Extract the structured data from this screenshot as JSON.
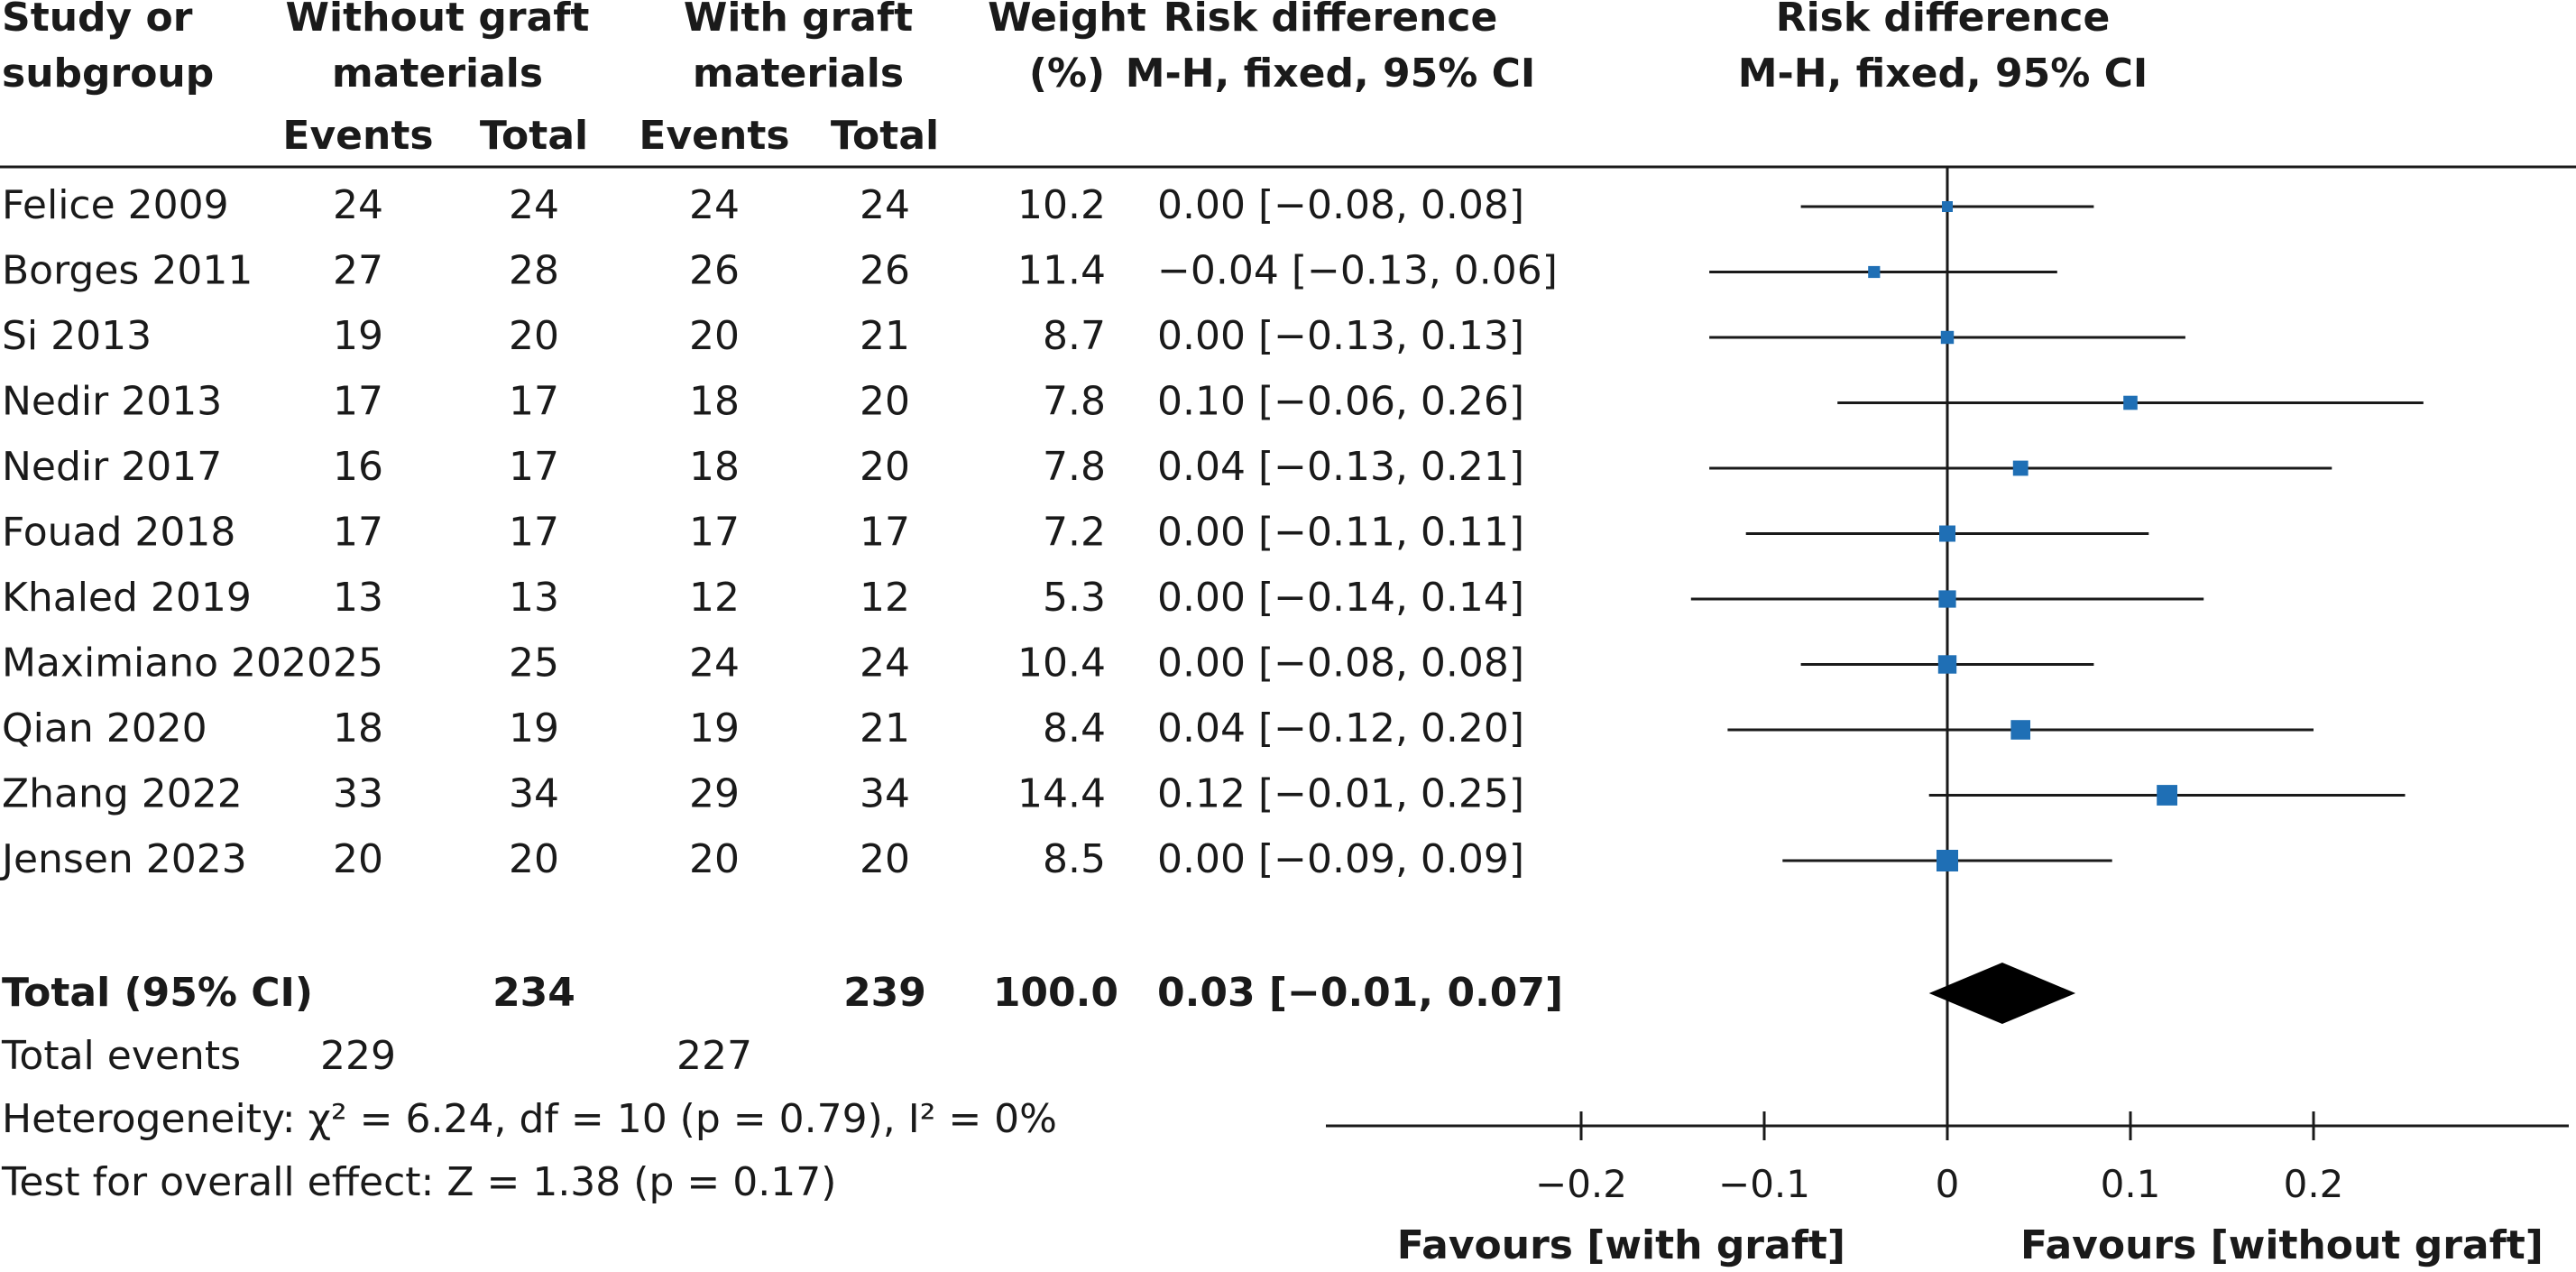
{
  "headers": {
    "study": [
      "Study or",
      "subgroup"
    ],
    "without": [
      "Without graft",
      "materials"
    ],
    "with": [
      "With graft",
      "materials"
    ],
    "weight": [
      "Weight",
      "(%)"
    ],
    "rd_col": [
      "Risk difference",
      "M-H, fixed, 95% CI"
    ],
    "rd_plot": [
      "Risk difference",
      "M-H, fixed, 95% CI"
    ],
    "events": "Events",
    "total": "Total"
  },
  "studies": [
    {
      "name": "Felice 2009",
      "ev_without": "24",
      "tot_without": "24",
      "ev_with": "24",
      "tot_with": "24",
      "weight": "10.2",
      "ci_text": "0.00 [−0.08, 0.08]"
    },
    {
      "name": "Borges 2011",
      "ev_without": "27",
      "tot_without": "28",
      "ev_with": "26",
      "tot_with": "26",
      "weight": "11.4",
      "ci_text": "−0.04 [−0.13, 0.06]"
    },
    {
      "name": "Si 2013",
      "ev_without": "19",
      "tot_without": "20",
      "ev_with": "20",
      "tot_with": "21",
      "weight": "8.7",
      "ci_text": "0.00 [−0.13, 0.13]"
    },
    {
      "name": "Nedir 2013",
      "ev_without": "17",
      "tot_without": "17",
      "ev_with": "18",
      "tot_with": "20",
      "weight": "7.8",
      "ci_text": "0.10 [−0.06, 0.26]"
    },
    {
      "name": "Nedir 2017",
      "ev_without": "16",
      "tot_without": "17",
      "ev_with": "18",
      "tot_with": "20",
      "weight": "7.8",
      "ci_text": "0.04 [−0.13, 0.21]"
    },
    {
      "name": "Fouad 2018",
      "ev_without": "17",
      "tot_without": "17",
      "ev_with": "17",
      "tot_with": "17",
      "weight": "7.2",
      "ci_text": "0.00 [−0.11, 0.11]"
    },
    {
      "name": "Khaled 2019",
      "ev_without": "13",
      "tot_without": "13",
      "ev_with": "12",
      "tot_with": "12",
      "weight": "5.3",
      "ci_text": "0.00 [−0.14, 0.14]"
    },
    {
      "name": "Maximiano 2020",
      "ev_without": "25",
      "tot_without": "25",
      "ev_with": "24",
      "tot_with": "24",
      "weight": "10.4",
      "ci_text": "0.00 [−0.08, 0.08]"
    },
    {
      "name": "Qian 2020",
      "ev_without": "18",
      "tot_without": "19",
      "ev_with": "19",
      "tot_with": "21",
      "weight": "8.4",
      "ci_text": "0.04 [−0.12, 0.20]"
    },
    {
      "name": "Zhang 2022",
      "ev_without": "33",
      "tot_without": "34",
      "ev_with": "29",
      "tot_with": "34",
      "weight": "14.4",
      "ci_text": "0.12 [−0.01, 0.25]"
    },
    {
      "name": "Jensen 2023",
      "ev_without": "20",
      "tot_without": "20",
      "ev_with": "20",
      "tot_with": "20",
      "weight": "8.5",
      "ci_text": "0.00 [−0.09, 0.09]"
    }
  ],
  "total": {
    "label": "Total (95% CI)",
    "tot_without": "234",
    "tot_with": "239",
    "weight": "100.0",
    "ci_text": "0.03 [−0.01, 0.07]"
  },
  "footer": {
    "events_label": "Total events",
    "events_without": "229",
    "events_with": "227",
    "heterogeneity": "Heterogeneity: χ² = 6.24, df = 10 (p = 0.79), I² = 0%",
    "overall": "Test for overall effect: Z = 1.38 (p = 0.17)"
  },
  "axis": {
    "favours_left": "Favours [with graft]",
    "favours_right": "Favours [without graft]"
  },
  "colors": {
    "marker": "#1f6fb5",
    "line": "#1a1a1a",
    "diamond": "#000000"
  },
  "chart_data": {
    "type": "scatter",
    "title": "Risk difference",
    "subtitle": "M-H, fixed, 95% CI",
    "xlabel": "",
    "ylabel": "",
    "xlim": [
      -0.34,
      0.34
    ],
    "xticks": [
      -0.2,
      -0.1,
      0,
      0.1,
      0.2
    ],
    "xtick_labels": [
      "−0.2",
      "−0.1",
      "0",
      "0.1",
      "0.2"
    ],
    "grid": false,
    "series": [
      {
        "name": "",
        "points": [
          {
            "study": "Felice 2009",
            "rd": 0.0,
            "lower": -0.08,
            "upper": 0.08,
            "weight": 10.2
          },
          {
            "study": "Borges 2011",
            "rd": -0.04,
            "lower": -0.13,
            "upper": 0.06,
            "weight": 11.4
          },
          {
            "study": "Si 2013",
            "rd": 0.0,
            "lower": -0.13,
            "upper": 0.13,
            "weight": 8.7
          },
          {
            "study": "Nedir 2013",
            "rd": 0.1,
            "lower": -0.06,
            "upper": 0.26,
            "weight": 7.8
          },
          {
            "study": "Nedir 2017",
            "rd": 0.04,
            "lower": -0.13,
            "upper": 0.21,
            "weight": 7.8
          },
          {
            "study": "Fouad 2018",
            "rd": 0.0,
            "lower": -0.11,
            "upper": 0.11,
            "weight": 7.2
          },
          {
            "study": "Khaled 2019",
            "rd": 0.0,
            "lower": -0.14,
            "upper": 0.14,
            "weight": 5.3
          },
          {
            "study": "Maximiano 2020",
            "rd": 0.0,
            "lower": -0.08,
            "upper": 0.08,
            "weight": 10.4
          },
          {
            "study": "Qian 2020",
            "rd": 0.04,
            "lower": -0.12,
            "upper": 0.2,
            "weight": 8.4
          },
          {
            "study": "Zhang 2022",
            "rd": 0.12,
            "lower": -0.01,
            "upper": 0.25,
            "weight": 14.4
          },
          {
            "study": "Jensen 2023",
            "rd": 0.0,
            "lower": -0.09,
            "upper": 0.09,
            "weight": 8.5
          }
        ]
      }
    ],
    "pooled": {
      "rd": 0.03,
      "lower": -0.01,
      "upper": 0.07
    }
  }
}
